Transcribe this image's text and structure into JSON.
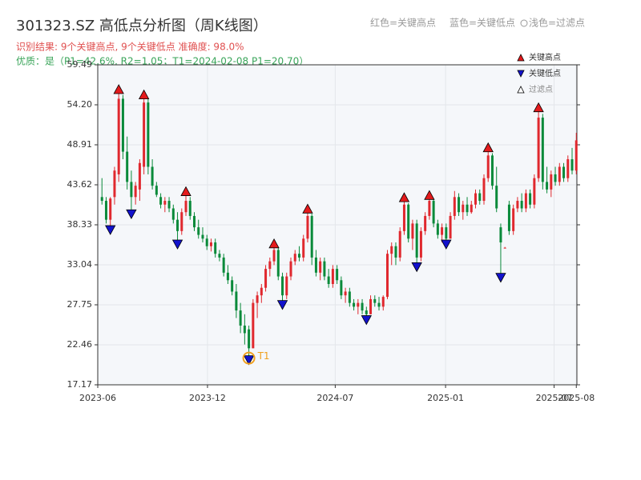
{
  "chart_data": {
    "type": "candlestick",
    "title": "301323.SZ 高低点分析图（周K线图）",
    "subtitle": "识别结果: 9个关键高点, 9个关键低点  准确度: 98.0%",
    "quality_note": "优质：是（P1=42.6%, R2=1.05；T1=2024-02-08 P1=20.70）",
    "top_legend": [
      "红色=关键高点",
      "蓝色=关键低点",
      "浅色=过滤点"
    ],
    "legend": [
      "关键高点",
      "关键低点",
      "过滤点"
    ],
    "up_color": "#e0282e",
    "down_color": "#0a8a3a",
    "high_color": "#e41a1c",
    "low_color": "#1212cc",
    "annotation_color": "#f0a020",
    "grid": true,
    "xlim": [
      "2023-06-01",
      "2025-08-08"
    ],
    "xticks": [
      {
        "value": "2023-06-01",
        "label": "2023-06"
      },
      {
        "value": "2023-12-01",
        "label": "2023-12"
      },
      {
        "value": "2024-07-01",
        "label": "2024-07"
      },
      {
        "value": "2025-01-01",
        "label": "2025-01"
      },
      {
        "value": "2025-07-01",
        "label": "2025-07"
      },
      {
        "value": "2025-08-07",
        "label": "2025-08"
      }
    ],
    "ylim": [
      17.17,
      59.49
    ],
    "yticks": [
      17.17,
      22.46,
      27.75,
      33.04,
      38.33,
      43.62,
      48.91,
      {
        "value": 54.2,
        "label": "54.20"
      },
      59.49
    ],
    "x": [
      "2023-06-08",
      "2023-06-15",
      "2023-06-22",
      "2023-06-29",
      "2023-07-06",
      "2023-07-13",
      "2023-07-20",
      "2023-07-27",
      "2023-08-03",
      "2023-08-10",
      "2023-08-17",
      "2023-08-24",
      "2023-08-31",
      "2023-09-07",
      "2023-09-14",
      "2023-09-21",
      "2023-09-28",
      "2023-10-05",
      "2023-10-12",
      "2023-10-19",
      "2023-10-26",
      "2023-11-02",
      "2023-11-09",
      "2023-11-16",
      "2023-11-23",
      "2023-11-30",
      "2023-12-07",
      "2023-12-14",
      "2023-12-21",
      "2023-12-28",
      "2024-01-04",
      "2024-01-11",
      "2024-01-18",
      "2024-01-25",
      "2024-02-01",
      "2024-02-08",
      "2024-02-15",
      "2024-02-22",
      "2024-02-29",
      "2024-03-07",
      "2024-03-14",
      "2024-03-21",
      "2024-03-28",
      "2024-04-04",
      "2024-04-11",
      "2024-04-18",
      "2024-04-25",
      "2024-05-02",
      "2024-05-09",
      "2024-05-16",
      "2024-05-23",
      "2024-05-30",
      "2024-06-06",
      "2024-06-13",
      "2024-06-20",
      "2024-06-27",
      "2024-07-04",
      "2024-07-11",
      "2024-07-18",
      "2024-07-25",
      "2024-08-01",
      "2024-08-08",
      "2024-08-15",
      "2024-08-22",
      "2024-08-29",
      "2024-09-05",
      "2024-09-12",
      "2024-09-19",
      "2024-09-26",
      "2024-10-03",
      "2024-10-10",
      "2024-10-17",
      "2024-10-24",
      "2024-10-31",
      "2024-11-07",
      "2024-11-14",
      "2024-11-21",
      "2024-11-28",
      "2024-12-05",
      "2024-12-12",
      "2024-12-19",
      "2024-12-26",
      "2025-01-02",
      "2025-01-09",
      "2025-01-16",
      "2025-01-23",
      "2025-01-30",
      "2025-02-06",
      "2025-02-13",
      "2025-02-20",
      "2025-02-27",
      "2025-03-06",
      "2025-03-13",
      "2025-03-20",
      "2025-03-27",
      "2025-04-03",
      "2025-04-10",
      "2025-04-17",
      "2025-04-24",
      "2025-05-01",
      "2025-05-08",
      "2025-05-15",
      "2025-05-22",
      "2025-05-29",
      "2025-06-05",
      "2025-06-12",
      "2025-06-19",
      "2025-06-26",
      "2025-07-03",
      "2025-07-10",
      "2025-07-17",
      "2025-07-24",
      "2025-07-31",
      "2025-08-07"
    ],
    "open": [
      42,
      41.5,
      39,
      42,
      45,
      55,
      48,
      44,
      42,
      43,
      46,
      54.5,
      46,
      43.5,
      42,
      41,
      41.5,
      40.5,
      39,
      37.5,
      40,
      41.5,
      39.5,
      38,
      37,
      36.5,
      35.5,
      36,
      34.5,
      34,
      32,
      31,
      29.5,
      27,
      25,
      24.5,
      22,
      28,
      29,
      30,
      32.5,
      33.5,
      35,
      31.5,
      29,
      31.5,
      33.5,
      34.5,
      34,
      36.5,
      39.5,
      34,
      32,
      33.5,
      31.5,
      30.5,
      32.5,
      31,
      29,
      29.5,
      28,
      27.5,
      28,
      27,
      26.5,
      28.5,
      28,
      27.5,
      28.8,
      34.5,
      35.5,
      34,
      37.5,
      41,
      36.5,
      38.5,
      34,
      37.5,
      39.5,
      41.5,
      38.5,
      37,
      38,
      36.5,
      39.5,
      42,
      40,
      41,
      40,
      41,
      42.5,
      41.5,
      44.5,
      47.5,
      43.5,
      38,
      35.3,
      41,
      37.5,
      40.5,
      41.5,
      40.5,
      42.5,
      41,
      44.5,
      52.5,
      44,
      43,
      45,
      44,
      46,
      44.5,
      47,
      45.5
    ],
    "high": [
      44.5,
      42,
      42,
      46,
      56,
      55.5,
      50,
      45.5,
      44,
      47,
      55.3,
      55,
      47,
      44,
      42.5,
      42,
      42,
      41,
      40,
      40.5,
      42.5,
      42,
      40,
      39,
      38,
      37,
      36.5,
      36.5,
      35,
      34.5,
      33,
      31.5,
      30.5,
      28,
      26.5,
      25,
      28.5,
      29.5,
      30.5,
      33,
      34,
      35.6,
      35.3,
      32,
      32,
      34,
      35,
      35.5,
      37,
      40.2,
      39.8,
      35,
      34,
      34,
      32.5,
      33,
      33,
      31.5,
      30,
      30,
      28.5,
      28.5,
      28.5,
      27.5,
      29,
      29,
      28.8,
      29,
      35,
      36,
      36,
      38,
      41.7,
      41.2,
      39,
      39,
      38,
      40,
      42,
      41.8,
      39,
      38.5,
      38.5,
      40,
      42.8,
      42.5,
      41.5,
      42,
      41.5,
      43,
      43,
      45,
      48.3,
      47.8,
      46,
      38.5,
      35.4,
      41.5,
      41,
      42,
      42.5,
      43,
      43,
      45,
      53.6,
      53,
      46,
      45.5,
      46,
      46.5,
      46.5,
      47.5,
      48.5,
      50.5
    ],
    "low": [
      41,
      38.5,
      37.9,
      41,
      44,
      47,
      43,
      40,
      41,
      41.5,
      45,
      45,
      43,
      42,
      40.5,
      40,
      40,
      38.5,
      36,
      37,
      39.5,
      39,
      37.5,
      36.5,
      36,
      35,
      34.8,
      34,
      33.5,
      31.5,
      30.5,
      29,
      26,
      24,
      22.5,
      20.7,
      22,
      26,
      28,
      29.5,
      31.5,
      33,
      31,
      28,
      28.5,
      31,
      33,
      33.5,
      33.5,
      36,
      33,
      31.5,
      31,
      31,
      30,
      30,
      30.5,
      28.5,
      28,
      27.5,
      27,
      26.5,
      26.5,
      26,
      26.5,
      27.5,
      27,
      27,
      28.5,
      33,
      33,
      33.5,
      37,
      36,
      35,
      33,
      33.5,
      37,
      39,
      38,
      36.5,
      36,
      36,
      36.5,
      39,
      39.5,
      39,
      39.5,
      39.8,
      40.5,
      41,
      41,
      44,
      43,
      40,
      31.6,
      35.2,
      37,
      37,
      40,
      40,
      40,
      40.5,
      40.5,
      44,
      43,
      42.5,
      42,
      43.5,
      43.5,
      44,
      44,
      45,
      45
    ],
    "close": [
      41.5,
      39,
      41.8,
      45.5,
      55,
      48,
      44,
      42,
      43.5,
      46.5,
      54.5,
      46,
      43.5,
      42.3,
      41,
      41.5,
      40.5,
      39,
      37.5,
      40,
      41.5,
      39.5,
      38,
      37,
      36.5,
      35.5,
      36,
      34.5,
      34,
      32,
      31,
      29.5,
      27,
      25,
      24,
      22,
      28,
      29,
      30,
      32.5,
      33.5,
      35,
      31.5,
      29,
      31.5,
      33.5,
      34.5,
      34,
      36.5,
      39.5,
      34,
      32,
      33.5,
      31.5,
      30.5,
      32.5,
      31,
      29,
      29.5,
      28,
      27.5,
      28,
      27,
      26.5,
      28.5,
      28,
      27.5,
      28.8,
      34.5,
      35.5,
      34,
      37.5,
      41,
      36.5,
      38.5,
      34,
      37.5,
      39.5,
      41.5,
      38.5,
      37,
      38,
      36.5,
      39.5,
      42,
      40,
      41,
      40,
      41,
      42.5,
      41.5,
      44.5,
      47.5,
      43.5,
      40.5,
      36,
      35.3,
      37.5,
      40.5,
      41.5,
      40.5,
      42.5,
      41,
      44.5,
      52.5,
      44,
      43,
      45,
      44,
      46,
      44.5,
      47,
      45.5,
      49.5
    ],
    "key_highs": [
      "2023-07-06",
      "2023-08-17",
      "2023-10-26",
      "2024-03-21",
      "2024-05-16",
      "2024-10-24",
      "2024-12-05",
      "2025-03-13",
      "2025-06-05"
    ],
    "key_lows": [
      "2023-06-22",
      "2023-07-27",
      "2023-10-12",
      "2024-02-08",
      "2024-04-04",
      "2024-08-22",
      "2024-11-14",
      "2025-01-02",
      "2025-04-03"
    ],
    "annotation": {
      "label": "T1",
      "x": "2024-02-08"
    }
  }
}
